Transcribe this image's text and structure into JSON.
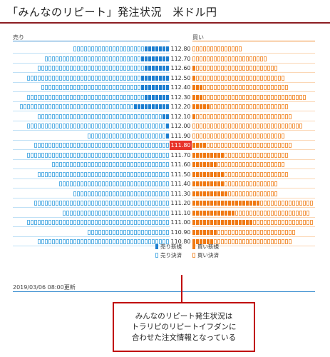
{
  "title": "「みんなのリピート」発注状況　米ドル円",
  "columns": {
    "sell": "売り",
    "buy": "買い"
  },
  "current_price": "111.80",
  "rows": [
    {
      "price": "112.80",
      "sell_new": 7,
      "sell_settle": 20,
      "buy_new": 0,
      "buy_settle": 14
    },
    {
      "price": "112.70",
      "sell_new": 8,
      "sell_settle": 27,
      "buy_new": 0,
      "buy_settle": 21
    },
    {
      "price": "112.60",
      "sell_new": 7,
      "sell_settle": 30,
      "buy_new": 1,
      "buy_settle": 23
    },
    {
      "price": "112.50",
      "sell_new": 8,
      "sell_settle": 32,
      "buy_new": 1,
      "buy_settle": 25
    },
    {
      "price": "112.40",
      "sell_new": 8,
      "sell_settle": 28,
      "buy_new": 3,
      "buy_settle": 24
    },
    {
      "price": "112.30",
      "sell_new": 7,
      "sell_settle": 33,
      "buy_new": 3,
      "buy_settle": 29
    },
    {
      "price": "112.20",
      "sell_new": 10,
      "sell_settle": 32,
      "buy_new": 5,
      "buy_settle": 22
    },
    {
      "price": "112.10",
      "sell_new": 2,
      "sell_settle": 35,
      "buy_new": 1,
      "buy_settle": 27
    },
    {
      "price": "112.00",
      "sell_new": 1,
      "sell_settle": 39,
      "buy_new": 0,
      "buy_settle": 31
    },
    {
      "price": "111.90",
      "sell_new": 1,
      "sell_settle": 22,
      "buy_new": 0,
      "buy_settle": 26
    },
    {
      "price": "111.80",
      "sell_new": 0,
      "sell_settle": 38,
      "buy_new": 4,
      "buy_settle": 24
    },
    {
      "price": "111.70",
      "sell_new": 0,
      "sell_settle": 40,
      "buy_new": 9,
      "buy_settle": 18
    },
    {
      "price": "111.60",
      "sell_new": 0,
      "sell_settle": 33,
      "buy_new": 7,
      "buy_settle": 19
    },
    {
      "price": "111.50",
      "sell_new": 0,
      "sell_settle": 37,
      "buy_new": 9,
      "buy_settle": 18
    },
    {
      "price": "111.40",
      "sell_new": 0,
      "sell_settle": 31,
      "buy_new": 9,
      "buy_settle": 15
    },
    {
      "price": "111.30",
      "sell_new": 0,
      "sell_settle": 27,
      "buy_new": 10,
      "buy_settle": 14
    },
    {
      "price": "111.20",
      "sell_new": 0,
      "sell_settle": 38,
      "buy_new": 19,
      "buy_settle": 15
    },
    {
      "price": "111.10",
      "sell_new": 0,
      "sell_settle": 30,
      "buy_new": 12,
      "buy_settle": 21
    },
    {
      "price": "111.00",
      "sell_new": 0,
      "sell_settle": 40,
      "buy_new": 17,
      "buy_settle": 17
    },
    {
      "price": "110.90",
      "sell_new": 0,
      "sell_settle": 23,
      "buy_new": 7,
      "buy_settle": 22
    },
    {
      "price": "110.80",
      "sell_new": 0,
      "sell_settle": 37,
      "buy_new": 6,
      "buy_settle": 22
    }
  ],
  "legend": {
    "sell_new": "売り新規",
    "sell_settle": "売り決済",
    "buy_new": "買い新規",
    "buy_settle": "買い決済"
  },
  "updated": "2019/03/06 08:00更新",
  "callout": {
    "line1": "みんなのリピート発生状況は",
    "line2": "トラリピのリピートイフダンに",
    "line3": "合わせた注文情報となっている"
  },
  "colors": {
    "sell_new": "#1e7fd0",
    "sell_settle": "#5fb3e6",
    "buy_new": "#f07a14",
    "buy_settle": "#f39a4a",
    "current_price": "#e8332a",
    "title_rule": "#8c1d22",
    "callout_border": "#c00000"
  }
}
